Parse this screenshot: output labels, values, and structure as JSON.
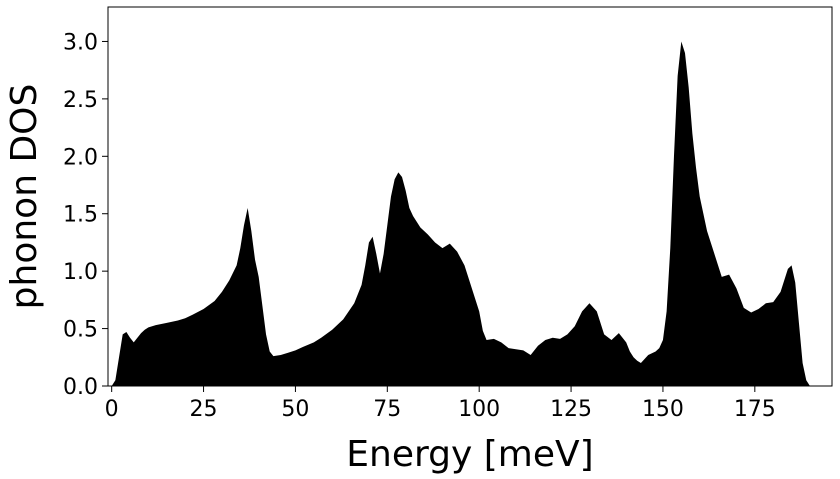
{
  "chart_data": {
    "type": "area",
    "title": "",
    "xlabel": "Energy [meV]",
    "ylabel": "phonon DOS",
    "xlim": [
      -1,
      196
    ],
    "ylim": [
      0,
      3.3
    ],
    "grid": false,
    "legend": "none",
    "fill_color": "#000000",
    "xticks": [
      0,
      25,
      50,
      75,
      100,
      125,
      150,
      175
    ],
    "xtick_labels": [
      "0",
      "25",
      "50",
      "75",
      "100",
      "125",
      "150",
      "175"
    ],
    "yticks": [
      0.0,
      0.5,
      1.0,
      1.5,
      2.0,
      2.5,
      3.0
    ],
    "ytick_labels": [
      "0.0",
      "0.5",
      "1.0",
      "1.5",
      "2.0",
      "2.5",
      "3.0"
    ],
    "series": [
      {
        "x": [
          0,
          1,
          2,
          3,
          4,
          5,
          6,
          7,
          8,
          9,
          10,
          12,
          15,
          18,
          20,
          22,
          25,
          28,
          30,
          32,
          34,
          35,
          36,
          37,
          38,
          39,
          40,
          41,
          42,
          43,
          44,
          46,
          48,
          50,
          52,
          55,
          57,
          60,
          63,
          66,
          68,
          69,
          70,
          71,
          72,
          73,
          74,
          75,
          76,
          77,
          78,
          79,
          80,
          81,
          82,
          84,
          86,
          88,
          90,
          92,
          94,
          96,
          98,
          100,
          101,
          102,
          104,
          106,
          108,
          110,
          112,
          114,
          116,
          118,
          120,
          122,
          124,
          126,
          128,
          130,
          132,
          134,
          136,
          138,
          140,
          141,
          142,
          143,
          144,
          146,
          148,
          149,
          150,
          151,
          152,
          153,
          154,
          155,
          156,
          157,
          158,
          159,
          160,
          162,
          164,
          166,
          168,
          170,
          172,
          174,
          176,
          178,
          180,
          182,
          184,
          185,
          186,
          187,
          188,
          189,
          190
        ],
        "y": [
          0.0,
          0.05,
          0.25,
          0.45,
          0.47,
          0.42,
          0.38,
          0.42,
          0.46,
          0.49,
          0.51,
          0.53,
          0.55,
          0.57,
          0.59,
          0.62,
          0.67,
          0.74,
          0.82,
          0.92,
          1.05,
          1.2,
          1.4,
          1.55,
          1.35,
          1.1,
          0.95,
          0.7,
          0.45,
          0.3,
          0.26,
          0.27,
          0.29,
          0.31,
          0.34,
          0.38,
          0.42,
          0.49,
          0.58,
          0.72,
          0.88,
          1.05,
          1.25,
          1.3,
          1.15,
          0.98,
          1.15,
          1.4,
          1.65,
          1.8,
          1.86,
          1.82,
          1.7,
          1.55,
          1.48,
          1.38,
          1.32,
          1.25,
          1.2,
          1.24,
          1.17,
          1.05,
          0.85,
          0.65,
          0.48,
          0.4,
          0.41,
          0.38,
          0.33,
          0.32,
          0.31,
          0.27,
          0.35,
          0.4,
          0.42,
          0.41,
          0.45,
          0.52,
          0.65,
          0.72,
          0.65,
          0.45,
          0.4,
          0.46,
          0.38,
          0.3,
          0.25,
          0.22,
          0.2,
          0.27,
          0.3,
          0.33,
          0.4,
          0.65,
          1.2,
          2.0,
          2.7,
          3.0,
          2.9,
          2.6,
          2.2,
          1.9,
          1.65,
          1.35,
          1.15,
          0.95,
          0.97,
          0.85,
          0.68,
          0.64,
          0.67,
          0.72,
          0.73,
          0.82,
          1.02,
          1.05,
          0.9,
          0.55,
          0.2,
          0.05,
          0.0
        ]
      }
    ]
  }
}
